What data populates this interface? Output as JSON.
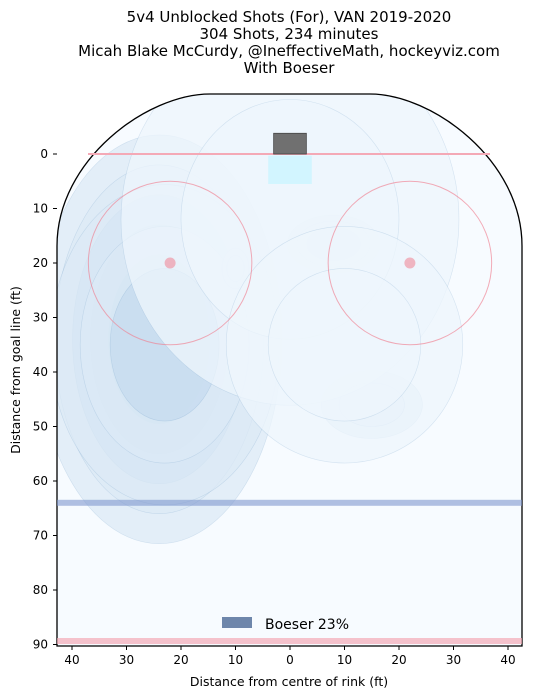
{
  "chart_data": {
    "type": "heatmap",
    "title_lines": [
      "5v4 Unblocked Shots (For), VAN 2019-2020",
      "304 Shots, 234 minutes",
      "Micah Blake McCurdy, @IneffectiveMath, hockeyviz.com",
      "With Boeser"
    ],
    "xlabel": "Distance from centre of rink (ft)",
    "ylabel": "Distance from goal line (ft)",
    "xlim": [
      42.5,
      -42.5
    ],
    "ylim": [
      -11,
      90
    ],
    "x_ticks": [
      40,
      30,
      20,
      10,
      0,
      10,
      20,
      30,
      40
    ],
    "x_tick_positions": [
      40,
      30,
      20,
      10,
      0,
      -10,
      -20,
      -30,
      -40
    ],
    "y_ticks": [
      0,
      10,
      20,
      30,
      40,
      50,
      60,
      70,
      80,
      90
    ],
    "legend": {
      "label": "Boeser 23%",
      "color": "#6e86ab",
      "placement": "bottom-center"
    },
    "colors": {
      "goal_line": "#f4a9b6",
      "faceoff": "#f08090",
      "blue_line": "#7e97cf",
      "crease": "#ccf4ff",
      "net": "#707070",
      "rink_boards": "#000000"
    },
    "rink": {
      "blue_line_y": 64,
      "faceoff_dots": [
        [
          22,
          20
        ],
        [
          -22,
          20
        ]
      ],
      "faceoff_circle_radius": 15
    },
    "density_blobs": [
      {
        "x": 27,
        "y": 28,
        "sx": 2.2,
        "sy": 2.8,
        "level": 1.0
      },
      {
        "x": 19,
        "y": 39.5,
        "sx": 2.8,
        "sy": 2.4,
        "level": 0.95
      },
      {
        "x": 24,
        "y": 34,
        "sx": 6,
        "sy": 10,
        "level": 0.55
      },
      {
        "x": 23,
        "y": 35,
        "sx": 10,
        "sy": 14,
        "level": 0.22
      },
      {
        "x": -8,
        "y": 16.5,
        "sx": 3.2,
        "sy": 2,
        "level": 0.28
      },
      {
        "x": -15,
        "y": 46,
        "sx": 6,
        "sy": 4,
        "level": 0.14
      },
      {
        "x": 10,
        "y": 21,
        "sx": 1.6,
        "sy": 2.4,
        "level": 0.14
      },
      {
        "x": 0,
        "y": 12,
        "sx": 20,
        "sy": 22,
        "level": 0.05
      },
      {
        "x": -10,
        "y": 35,
        "sx": 14,
        "sy": 14,
        "level": 0.04
      }
    ]
  }
}
